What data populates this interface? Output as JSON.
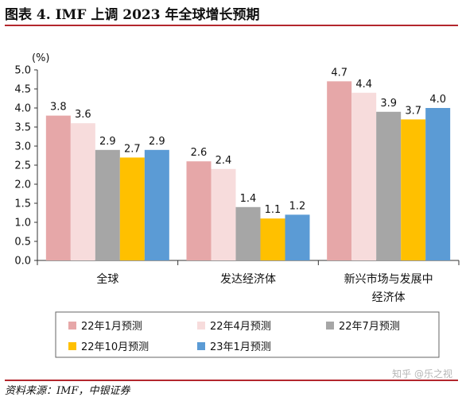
{
  "title": "图表 4. IMF 上调 2023 年全球增长预期",
  "source": "资料来源：IMF，中银证券",
  "watermark": "知乎 @乐之视",
  "chart_data": {
    "type": "bar",
    "unit_label": "(%)",
    "categories": [
      "全球",
      "发达经济体",
      "新兴市场与发展中经济体"
    ],
    "category_lines": [
      [
        "全球"
      ],
      [
        "发达经济体"
      ],
      [
        "新兴市场与发展中",
        "经济体"
      ]
    ],
    "series": [
      {
        "name": "22年1月预测",
        "values": [
          3.8,
          2.6,
          4.7
        ],
        "color": "#e6a7a8"
      },
      {
        "name": "22年4月预测",
        "values": [
          3.6,
          2.4,
          4.4
        ],
        "color": "#f7dcdc"
      },
      {
        "name": "22年7月预测",
        "values": [
          2.9,
          1.4,
          3.9
        ],
        "color": "#a6a6a6"
      },
      {
        "name": "22年10月预测",
        "values": [
          2.7,
          1.1,
          3.7
        ],
        "color": "#ffc000"
      },
      {
        "name": "23年1月预测",
        "values": [
          2.9,
          1.2,
          4.0
        ],
        "color": "#5b9bd5"
      }
    ],
    "ylim": [
      0,
      5
    ],
    "yticks": [
      "0.0",
      "0.5",
      "1.0",
      "1.5",
      "2.0",
      "2.5",
      "3.0",
      "3.5",
      "4.0",
      "4.5",
      "5.0"
    ],
    "grid": false,
    "legend_position": "bottom"
  }
}
